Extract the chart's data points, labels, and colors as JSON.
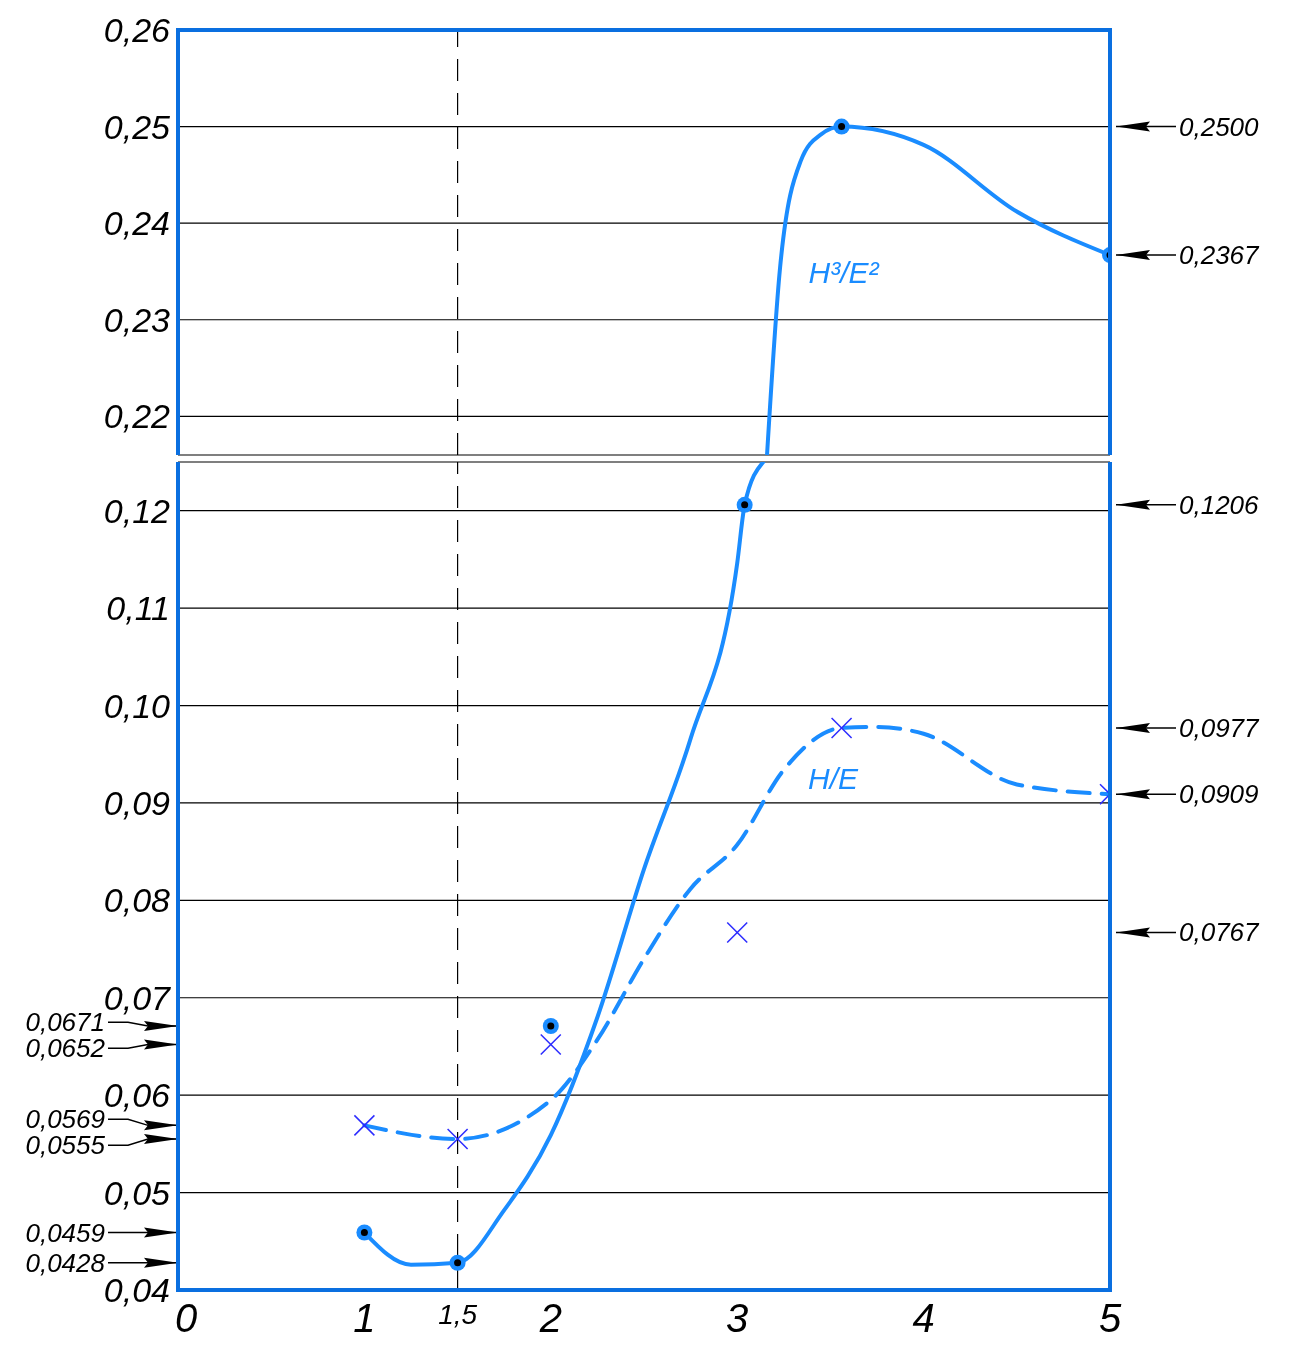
{
  "chart_data": [
    {
      "type": "line",
      "xlim": [
        0,
        5
      ],
      "xticks": [
        0,
        1,
        2,
        3,
        4,
        5
      ],
      "ylim": [
        0.216,
        0.26
      ],
      "yticks": [
        {
          "value": 0.22,
          "label": "0,22"
        },
        {
          "value": 0.23,
          "label": "0,23"
        },
        {
          "value": 0.24,
          "label": "0,24"
        },
        {
          "value": 0.25,
          "label": "0,25"
        },
        {
          "value": 0.26,
          "label": "0,26"
        }
      ],
      "y2lim": [
        0.216,
        0.26
      ],
      "y2ticks": [
        {
          "value": 0.25,
          "label": "0,2500"
        },
        {
          "value": 0.2367,
          "label": "0,2367"
        }
      ],
      "grid": true,
      "tick_labels": "y",
      "series": [
        {
          "name": "H³/E²",
          "color": "#1a8cff",
          "marker": "none",
          "line_style": "solid",
          "x": [
            3.16,
            3.23,
            3.34,
            3.45,
            3.56,
            4,
            4.5,
            5
          ],
          "values": [
            0.216,
            0.2354,
            0.2464,
            0.2492,
            0.25,
            0.2481,
            0.2412,
            0.2367
          ]
        },
        {
          "type": "scatter",
          "color": "#1a8cff",
          "marker": "circle",
          "x": [
            3.56,
            5
          ],
          "values": [
            0.25,
            0.2367
          ]
        }
      ],
      "ref_lines": [
        {
          "axis": "x",
          "value": 1.5,
          "line_style": "dashed",
          "color": "#000000"
        }
      ]
    },
    {
      "type": "line",
      "xlim": [
        0,
        5
      ],
      "xticks": [
        0,
        1,
        2,
        3,
        4,
        5
      ],
      "ylim": [
        0.04,
        0.125
      ],
      "yticks": [
        {
          "value": 0.04,
          "label": "0,04"
        },
        {
          "value": 0.05,
          "label": "0,05"
        },
        {
          "value": 0.06,
          "label": "0,06"
        },
        {
          "value": 0.07,
          "label": "0,07"
        },
        {
          "value": 0.08,
          "label": "0,08"
        },
        {
          "value": 0.09,
          "label": "0,09"
        },
        {
          "value": 0.1,
          "label": "0,10"
        },
        {
          "value": 0.11,
          "label": "0,11"
        },
        {
          "value": 0.12,
          "label": "0,12"
        }
      ],
      "y2lim": [
        0.04,
        0.125
      ],
      "y2ticks": [
        {
          "value": 0.1206,
          "label": "0,1206"
        },
        {
          "value": 0.0977,
          "label": "0,0977"
        },
        {
          "value": 0.0909,
          "label": "0,0909"
        },
        {
          "value": 0.0767,
          "label": "0,0767"
        }
      ],
      "y3lim": [
        0.04,
        0.125
      ],
      "y3ticks": [
        {
          "value": 0.0671,
          "label": "0,0671"
        },
        {
          "value": 0.0652,
          "label": "0,0652"
        },
        {
          "value": 0.0569,
          "label": "0,0569"
        },
        {
          "value": 0.0555,
          "label": "0,0555"
        },
        {
          "value": 0.0459,
          "label": "0,0459"
        },
        {
          "value": 0.0428,
          "label": "0,0428"
        }
      ],
      "grid": true,
      "series": [
        {
          "color": "#1a8cff",
          "marker": "none",
          "line_style": "solid",
          "x": [
            1,
            1.25,
            1.5,
            1.75,
            2,
            2.25,
            2.5,
            2.75,
            3,
            3.04,
            3.14
          ],
          "values": [
            0.0459,
            0.0426,
            0.0428,
            0.0482,
            0.0559,
            0.068,
            0.0832,
            0.0966,
            0.1146,
            0.1206,
            0.125
          ]
        },
        {
          "name": "H/E",
          "color": "#1a8cff",
          "marker": "none",
          "line_style": "dashed",
          "x": [
            1,
            1.5,
            2,
            2.25,
            2.5,
            2.75,
            3,
            3.25,
            3.56,
            3.75,
            4,
            4.5,
            5
          ],
          "values": [
            0.0569,
            0.0555,
            0.0595,
            0.0657,
            0.074,
            0.0812,
            0.0857,
            0.0934,
            0.0977,
            0.0978,
            0.0971,
            0.0919,
            0.0909
          ]
        },
        {
          "type": "scatter",
          "color": "#1a8cff",
          "marker": "circle",
          "x": [
            1,
            1.5,
            2,
            3.04
          ],
          "values": [
            0.0459,
            0.0428,
            0.0671,
            0.1206
          ]
        },
        {
          "type": "scatter",
          "color": "#2b2bff",
          "marker": "cross",
          "x": [
            1,
            1.5,
            2,
            3,
            3.56,
            5
          ],
          "values": [
            0.0569,
            0.0555,
            0.0652,
            0.0767,
            0.0977,
            0.0909
          ]
        }
      ],
      "ref_lines": [
        {
          "axis": "x",
          "value": 1.5,
          "label": "1,5",
          "line_style": "dashed",
          "color": "#000000"
        }
      ]
    }
  ]
}
